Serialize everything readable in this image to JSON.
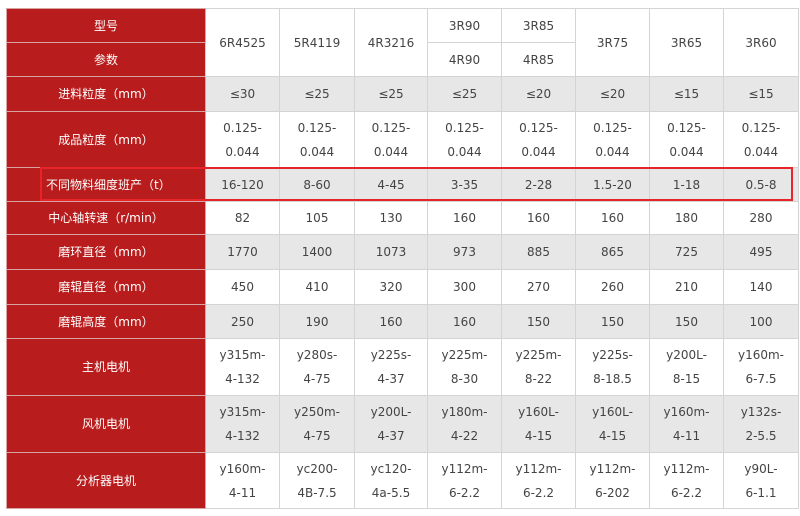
{
  "header": {
    "label_top": "型号",
    "label_bottom": "参数",
    "models": [
      {
        "top": "6R4525"
      },
      {
        "top": "5R4119"
      },
      {
        "top": "4R3216"
      },
      {
        "top": "3R90",
        "bottom": "4R90"
      },
      {
        "top": "3R85",
        "bottom": "4R85"
      },
      {
        "top": "3R75"
      },
      {
        "top": "3R65"
      },
      {
        "top": "3R60"
      }
    ]
  },
  "rows": [
    {
      "label": "进料粒度（mm）",
      "values": [
        "≤30",
        "≤25",
        "≤25",
        "≤25",
        "≤20",
        "≤20",
        "≤15",
        "≤15"
      ]
    },
    {
      "label": "成品粒度（mm）",
      "values": [
        "0.125-\n0.044",
        "0.125-\n0.044",
        "0.125-\n0.044",
        "0.125-\n0.044",
        "0.125-\n0.044",
        "0.125-\n0.044",
        "0.125-\n0.044",
        "0.125-\n0.044"
      ]
    },
    {
      "label": "不同物料细度班产（t）",
      "highlight": true,
      "values": [
        "16-120",
        "8-60",
        "4-45",
        "3-35",
        "2-28",
        "1.5-20",
        "1-18",
        "0.5-8"
      ]
    },
    {
      "label": "中心轴转速（r/min）",
      "values": [
        "82",
        "105",
        "130",
        "160",
        "160",
        "160",
        "180",
        "280"
      ]
    },
    {
      "label": "磨环直径（mm）",
      "values": [
        "1770",
        "1400",
        "1073",
        "973",
        "885",
        "865",
        "725",
        "495"
      ]
    },
    {
      "label": "磨辊直径（mm）",
      "values": [
        "450",
        "410",
        "320",
        "300",
        "270",
        "260",
        "210",
        "140"
      ]
    },
    {
      "label": "磨辊高度（mm）",
      "values": [
        "250",
        "190",
        "160",
        "160",
        "150",
        "150",
        "150",
        "100"
      ]
    },
    {
      "label": "主机电机",
      "values": [
        "y315m-\n4-132",
        "y280s-\n4-75",
        "y225s-\n4-37",
        "y225m-\n8-30",
        "y225m-\n8-22",
        "y225s-\n8-18.5",
        "y200L-\n8-15",
        "y160m-\n6-7.5"
      ]
    },
    {
      "label": "风机电机",
      "values": [
        "y315m-\n4-132",
        "y250m-\n4-75",
        "y200L-\n4-37",
        "y180m-\n4-22",
        "y160L-\n4-15",
        "y160L-\n4-15",
        "y160m-\n4-11",
        "y132s-\n2-5.5"
      ]
    },
    {
      "label": "分析器电机",
      "values": [
        "y160m-\n4-11",
        "yc200-\n4B-7.5",
        "yc120-\n4a-5.5",
        "y112m-\n6-2.2",
        "y112m-\n6-2.2",
        "y112m-\n6-202",
        "y112m-\n6-2.2",
        "y90L-\n6-1.1"
      ]
    }
  ],
  "colors": {
    "header_bg": "#b81c1c",
    "highlight_border": "#e8242a",
    "stripe": "#e7e7e7"
  }
}
